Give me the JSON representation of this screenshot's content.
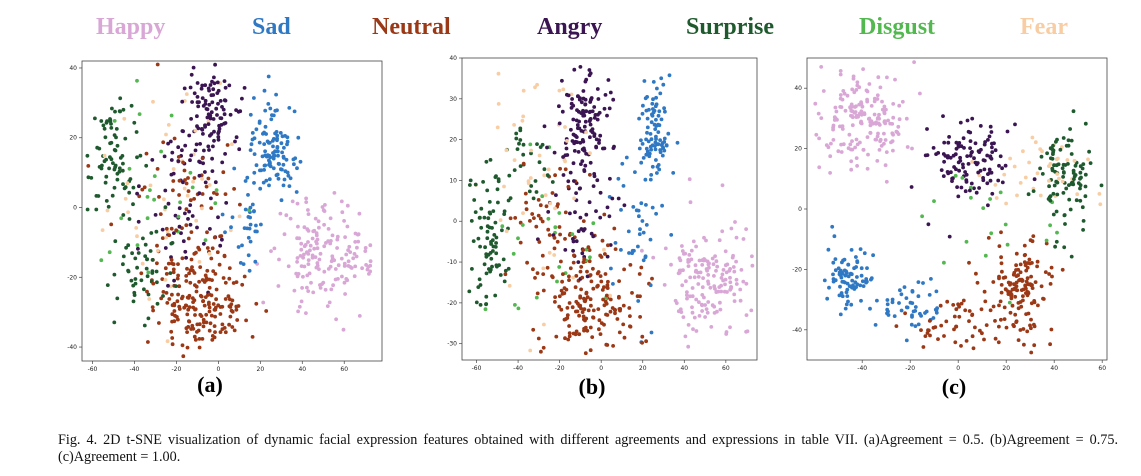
{
  "legend": [
    {
      "label": "Happy",
      "color": "#d9a7d6"
    },
    {
      "label": "Sad",
      "color": "#2f78c4"
    },
    {
      "label": "Neutral",
      "color": "#9b3816"
    },
    {
      "label": "Angry",
      "color": "#3b1552"
    },
    {
      "label": "Surprise",
      "color": "#1f5a2e"
    },
    {
      "label": "Disgust",
      "color": "#52b84f"
    },
    {
      "label": "Fear",
      "color": "#f8cda3"
    }
  ],
  "caption": "Fig. 4.  2D t-SNE visualization of dynamic facial expression features obtained with different agreements and expressions in table VII. (a)Agreement = 0.5. (b)Agreement = 0.75. (c)Agreement = 1.00.",
  "chart_data": [
    {
      "type": "scatter",
      "label": "(a)",
      "xlim": [
        -65,
        78
      ],
      "ylim": [
        -44,
        42
      ],
      "xticks": [
        -60,
        -40,
        -20,
        0,
        20,
        40,
        60
      ],
      "yticks": [
        -40,
        -20,
        0,
        20,
        40
      ],
      "clusters": [
        {
          "series": "Happy",
          "cx": 50,
          "cy": -13,
          "sx": 11,
          "sy": 7,
          "n": 170
        },
        {
          "series": "Sad",
          "cx": 26,
          "cy": 18,
          "sx": 6,
          "sy": 7,
          "n": 110
        },
        {
          "series": "Sad",
          "cx": 15,
          "cy": -5,
          "sx": 5,
          "sy": 8,
          "n": 35
        },
        {
          "series": "Neutral",
          "cx": -8,
          "cy": -28,
          "sx": 12,
          "sy": 7,
          "n": 170
        },
        {
          "series": "Neutral",
          "cx": -15,
          "cy": 0,
          "sx": 14,
          "sy": 14,
          "n": 90
        },
        {
          "series": "Angry",
          "cx": -3,
          "cy": 28,
          "sx": 6,
          "sy": 8,
          "n": 100
        },
        {
          "series": "Angry",
          "cx": -15,
          "cy": 5,
          "sx": 12,
          "sy": 14,
          "n": 70
        },
        {
          "series": "Surprise",
          "cx": -50,
          "cy": 15,
          "sx": 6,
          "sy": 10,
          "n": 80
        },
        {
          "series": "Surprise",
          "cx": -35,
          "cy": -18,
          "sx": 7,
          "sy": 7,
          "n": 50
        },
        {
          "series": "Disgust",
          "cx": -30,
          "cy": 0,
          "sx": 18,
          "sy": 15,
          "n": 25
        },
        {
          "series": "Fear",
          "cx": -25,
          "cy": 5,
          "sx": 20,
          "sy": 20,
          "n": 45
        }
      ]
    },
    {
      "type": "scatter",
      "label": "(b)",
      "xlim": [
        -67,
        75
      ],
      "ylim": [
        -34,
        40
      ],
      "xticks": [
        -60,
        -40,
        -20,
        0,
        20,
        40,
        60
      ],
      "yticks": [
        -30,
        -20,
        -10,
        0,
        10,
        20,
        30,
        40
      ],
      "clusters": [
        {
          "series": "Happy",
          "cx": 52,
          "cy": -15,
          "sx": 9,
          "sy": 8,
          "n": 170
        },
        {
          "series": "Sad",
          "cx": 26,
          "cy": 22,
          "sx": 4,
          "sy": 6,
          "n": 90
        },
        {
          "series": "Sad",
          "cx": 18,
          "cy": 0,
          "sx": 5,
          "sy": 10,
          "n": 40
        },
        {
          "series": "Neutral",
          "cx": -5,
          "cy": -20,
          "sx": 12,
          "sy": 7,
          "n": 170
        },
        {
          "series": "Neutral",
          "cx": -25,
          "cy": -5,
          "sx": 12,
          "sy": 10,
          "n": 60
        },
        {
          "series": "Angry",
          "cx": -8,
          "cy": 25,
          "sx": 6,
          "sy": 8,
          "n": 130
        },
        {
          "series": "Angry",
          "cx": -10,
          "cy": 0,
          "sx": 8,
          "sy": 10,
          "n": 50
        },
        {
          "series": "Surprise",
          "cx": -55,
          "cy": -5,
          "sx": 5,
          "sy": 8,
          "n": 80
        },
        {
          "series": "Surprise",
          "cx": -35,
          "cy": 15,
          "sx": 6,
          "sy": 6,
          "n": 30
        },
        {
          "series": "Disgust",
          "cx": -30,
          "cy": -5,
          "sx": 15,
          "sy": 12,
          "n": 25
        },
        {
          "series": "Fear",
          "cx": -35,
          "cy": 10,
          "sx": 18,
          "sy": 15,
          "n": 50
        }
      ]
    },
    {
      "type": "scatter",
      "label": "(c)",
      "xlim": [
        -63,
        62
      ],
      "ylim": [
        -50,
        50
      ],
      "xticks": [
        -40,
        -20,
        0,
        20,
        40,
        60
      ],
      "yticks": [
        -40,
        -20,
        0,
        20,
        40
      ],
      "clusters": [
        {
          "series": "Happy",
          "cx": -40,
          "cy": 30,
          "sx": 9,
          "sy": 8,
          "n": 180
        },
        {
          "series": "Sad",
          "cx": -45,
          "cy": -22,
          "sx": 5,
          "sy": 5,
          "n": 80
        },
        {
          "series": "Sad",
          "cx": -20,
          "cy": -33,
          "sx": 8,
          "sy": 4,
          "n": 50
        },
        {
          "series": "Neutral",
          "cx": 25,
          "cy": -25,
          "sx": 7,
          "sy": 9,
          "n": 140
        },
        {
          "series": "Neutral",
          "cx": 0,
          "cy": -38,
          "sx": 10,
          "sy": 4,
          "n": 50
        },
        {
          "series": "Angry",
          "cx": 5,
          "cy": 15,
          "sx": 8,
          "sy": 7,
          "n": 120
        },
        {
          "series": "Surprise",
          "cx": 45,
          "cy": 10,
          "sx": 7,
          "sy": 9,
          "n": 100
        },
        {
          "series": "Disgust",
          "cx": 10,
          "cy": -5,
          "sx": 20,
          "sy": 15,
          "n": 20
        },
        {
          "series": "Fear",
          "cx": 35,
          "cy": 15,
          "sx": 12,
          "sy": 8,
          "n": 40
        }
      ]
    }
  ]
}
